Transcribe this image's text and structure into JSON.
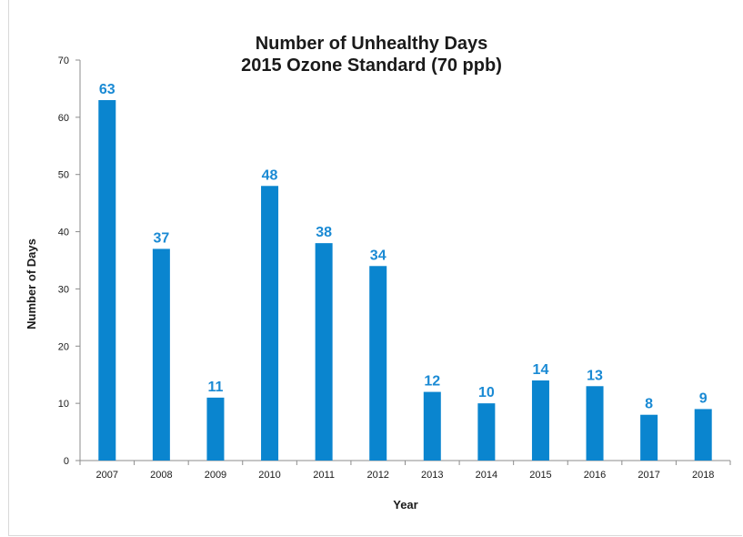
{
  "chart_data": {
    "type": "bar",
    "title_line1": "Number of Unhealthy Days",
    "title_line2": "2015 Ozone Standard (70 ppb)",
    "xlabel": "Year",
    "ylabel": "Number of Days",
    "categories": [
      "2007",
      "2008",
      "2009",
      "2010",
      "2011",
      "2012",
      "2013",
      "2014",
      "2015",
      "2016",
      "2017",
      "2018"
    ],
    "values": [
      63,
      37,
      11,
      48,
      38,
      34,
      12,
      10,
      14,
      13,
      8,
      9
    ],
    "ylim": [
      0,
      70
    ],
    "yticks": [
      0,
      10,
      20,
      30,
      40,
      50,
      60,
      70
    ],
    "grid": false,
    "legend": "none",
    "bar_color": "#0a85cf",
    "label_color": "#1a8ad4"
  }
}
